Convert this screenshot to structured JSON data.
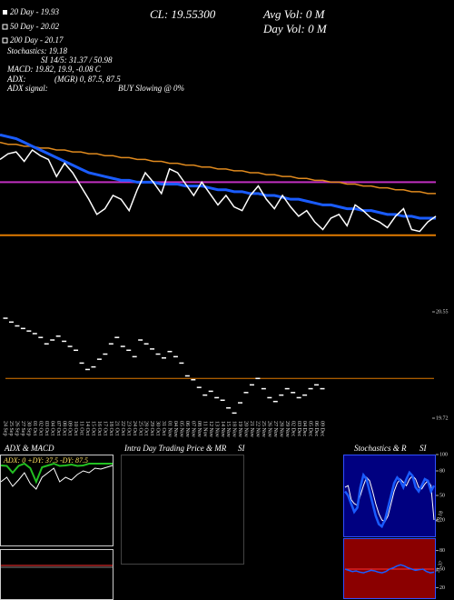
{
  "chart_data": [
    {
      "type": "line",
      "annotations": [
        "20 Day - 19.93",
        "50 Day - 20.02",
        "200 Day - 20.17",
        "Stochastics: 19.18",
        "SI 14/5: 31.37 / 50.98",
        "MACD: 19.82, 19.9, -0.08 C",
        "ADX:",
        "(MGR) 0, 87.5, 87.5",
        "ADX signal:",
        "BUY Slowing @ 0%",
        "CL: 19.55300",
        "Avg Vol: 0 M",
        "Day Vol: 0 M"
      ],
      "ylim": [
        19.5,
        20.7
      ],
      "series": [
        {
          "color": "#e08a1e",
          "width": 1.5,
          "values": [
            20.38,
            20.37,
            20.37,
            20.36,
            20.36,
            20.35,
            20.35,
            20.34,
            20.34,
            20.33,
            20.33,
            20.32,
            20.32,
            20.31,
            20.31,
            20.3,
            20.3,
            20.29,
            20.29,
            20.28,
            20.28,
            20.27,
            20.27,
            20.26,
            20.26,
            20.25,
            20.25,
            20.24,
            20.24,
            20.23,
            20.23,
            20.22,
            20.22,
            20.21,
            20.21,
            20.2,
            20.2,
            20.19,
            20.19,
            20.18,
            20.18,
            20.17,
            20.17,
            20.16,
            20.16,
            20.15,
            20.15,
            20.14,
            20.14,
            20.13,
            20.13,
            20.12,
            20.12,
            20.11,
            20.11
          ]
        },
        {
          "color": "#1a5cff",
          "width": 3,
          "values": [
            20.42,
            20.41,
            20.4,
            20.38,
            20.36,
            20.34,
            20.32,
            20.3,
            20.28,
            20.26,
            20.24,
            20.22,
            20.21,
            20.2,
            20.19,
            20.18,
            20.18,
            20.17,
            20.17,
            20.17,
            20.16,
            20.16,
            20.16,
            20.15,
            20.15,
            20.15,
            20.14,
            20.13,
            20.13,
            20.12,
            20.12,
            20.11,
            20.11,
            20.1,
            20.1,
            20.09,
            20.08,
            20.08,
            20.07,
            20.06,
            20.05,
            20.05,
            20.04,
            20.03,
            20.03,
            20.02,
            20.02,
            20.01,
            20.0,
            20.0,
            19.99,
            19.99,
            19.98,
            19.98,
            19.98
          ]
        },
        {
          "color": "#ffffff",
          "width": 1.5,
          "values": [
            20.29,
            20.32,
            20.33,
            20.28,
            20.34,
            20.31,
            20.29,
            20.2,
            20.27,
            20.22,
            20.15,
            20.08,
            20.0,
            20.03,
            20.1,
            20.08,
            20.02,
            20.13,
            20.22,
            20.17,
            20.11,
            20.24,
            20.22,
            20.16,
            20.1,
            20.17,
            20.11,
            20.05,
            20.1,
            20.04,
            20.02,
            20.1,
            20.15,
            20.08,
            20.03,
            20.1,
            20.04,
            19.99,
            20.02,
            19.96,
            19.92,
            19.98,
            20.0,
            19.94,
            20.05,
            20.02,
            19.98,
            19.96,
            19.93,
            19.99,
            20.03,
            19.92,
            19.91,
            19.96,
            19.99
          ]
        }
      ],
      "hlines": [
        {
          "value": 20.17,
          "color": "#c030c0"
        },
        {
          "value": 19.89,
          "color": "#e07b00"
        }
      ]
    },
    {
      "type": "dash",
      "categories": [
        "24 Sep",
        "25 Sep",
        "26 Sep",
        "27 Sep",
        "30 Sep",
        "01 Oct",
        "02 Oct",
        "03 Oct",
        "04 Oct",
        "07 Oct",
        "08 Oct",
        "09 Oct",
        "10 Oct",
        "11 Oct",
        "14 Oct",
        "15 Oct",
        "16 Oct",
        "17 Oct",
        "18 Oct",
        "21 Oct",
        "22 Oct",
        "23 Oct",
        "24 Oct",
        "25 Oct",
        "28 Oct",
        "29 Oct",
        "30 Oct",
        "31 Oct",
        "01 Nov",
        "04 Nov",
        "05 Nov",
        "06 Nov",
        "07 Nov",
        "08 Nov",
        "11 Nov",
        "12 Nov",
        "13 Nov",
        "14 Nov",
        "15 Nov",
        "18 Nov",
        "19 Nov",
        "20 Nov",
        "21 Nov",
        "22 Nov",
        "25 Nov",
        "26 Nov",
        "27 Nov",
        "28 Nov",
        "29 Nov",
        "02 Dec",
        "03 Dec",
        "04 Dec",
        "05 Dec",
        "06 Dec",
        "09 Dec"
      ],
      "values": [
        20.5,
        20.47,
        20.44,
        20.42,
        20.4,
        20.38,
        20.35,
        20.3,
        20.33,
        20.36,
        20.32,
        20.28,
        20.25,
        20.15,
        20.1,
        20.12,
        20.18,
        20.22,
        20.3,
        20.35,
        20.28,
        20.25,
        20.2,
        20.33,
        20.3,
        20.26,
        20.22,
        20.19,
        20.24,
        20.2,
        20.15,
        20.05,
        20.02,
        19.96,
        19.9,
        19.93,
        19.88,
        19.86,
        19.8,
        19.76,
        19.84,
        19.92,
        19.98,
        20.03,
        19.95,
        19.88,
        19.85,
        19.9,
        19.95,
        19.92,
        19.88,
        19.9,
        19.95,
        19.98,
        19.95
      ],
      "color": "#ffffff",
      "ylim": [
        19.72,
        20.55
      ],
      "yticks": [
        20.55,
        19.72
      ],
      "hlines": [
        {
          "value": 20.03,
          "color": "#e07b00"
        }
      ]
    },
    {
      "type": "line",
      "title": "ADX & MACD",
      "annotations": [
        "ADX: 0 +DY: 37.5 -DY: 87.5"
      ],
      "ylim": [
        0,
        100
      ],
      "series": [
        {
          "color": "#22c022",
          "width": 2,
          "values": [
            88,
            87.5,
            80,
            87.5,
            90,
            85,
            70,
            86,
            88,
            90,
            87.5,
            88,
            89,
            87.5,
            88,
            90,
            90,
            90,
            90,
            90
          ]
        },
        {
          "color": "#ffffff",
          "width": 1,
          "values": [
            70,
            75,
            65,
            72,
            80,
            68,
            62,
            75,
            80,
            85,
            70,
            75,
            72,
            78,
            82,
            80,
            85,
            84,
            86,
            88
          ]
        }
      ]
    },
    {
      "type": "empty",
      "title": "Intra Day Trading Price & MR",
      "subtitle": "SI"
    },
    {
      "type": "line",
      "title": "Stochastics & R",
      "subtitle": "SI",
      "annotations": [
        "19.18"
      ],
      "ylim": [
        0,
        100
      ],
      "yticks": [
        100,
        80,
        50,
        20
      ],
      "series": [
        {
          "color": "#ffffff",
          "width": 1,
          "values": [
            60,
            62,
            45,
            40,
            38,
            50,
            62,
            72,
            68,
            55,
            40,
            28,
            20,
            18,
            25,
            40,
            55,
            65,
            70,
            66,
            62,
            70,
            74,
            70,
            60,
            58,
            64,
            68,
            62,
            20
          ]
        },
        {
          "color": "#1a5cff",
          "width": 2.5,
          "values": [
            55,
            50,
            40,
            30,
            35,
            60,
            75,
            70,
            55,
            40,
            25,
            15,
            12,
            20,
            35,
            50,
            65,
            72,
            68,
            60,
            70,
            78,
            74,
            60,
            55,
            62,
            70,
            68,
            55,
            62
          ]
        }
      ]
    },
    {
      "type": "line",
      "annotations": [
        "31.37"
      ],
      "ylim": [
        0,
        100
      ],
      "yticks": [
        80,
        50,
        20
      ],
      "series": [
        {
          "color": "#1a5cff",
          "width": 1.5,
          "values": [
            50,
            48,
            46,
            47,
            45,
            44,
            46,
            48,
            47,
            45,
            44,
            46,
            50,
            52,
            55,
            57,
            55,
            52,
            50,
            48,
            49,
            50,
            46,
            44,
            45
          ]
        }
      ],
      "hlines": [
        {
          "value": 50,
          "color": "#ff3030"
        }
      ]
    }
  ]
}
